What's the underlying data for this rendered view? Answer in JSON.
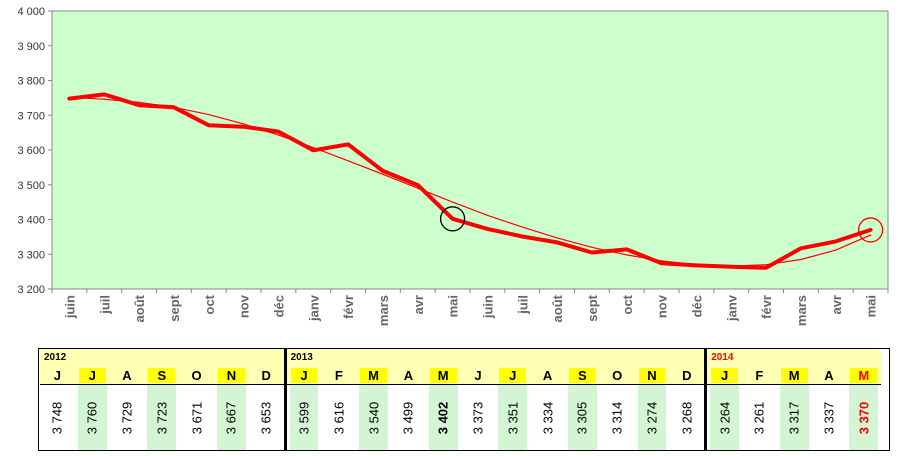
{
  "chart_data": {
    "type": "line",
    "categories": [
      "juin",
      "juil",
      "août",
      "sept",
      "oct",
      "nov",
      "déc",
      "janv",
      "févr",
      "mars",
      "avr",
      "mai",
      "juin",
      "juil",
      "août",
      "sept",
      "oct",
      "nov",
      "déc",
      "janv",
      "févr",
      "mars",
      "avr",
      "mai"
    ],
    "series": [
      {
        "values": [
          3748,
          3760,
          3729,
          3723,
          3671,
          3667,
          3653,
          3599,
          3616,
          3540,
          3499,
          3402,
          3373,
          3351,
          3334,
          3305,
          3314,
          3274,
          3268,
          3264,
          3261,
          3317,
          3337,
          3370
        ],
        "color": "#ff0000"
      },
      {
        "values": [
          3752,
          3746,
          3737,
          3723,
          3702,
          3675,
          3643,
          3607,
          3569,
          3530,
          3490,
          3450,
          3412,
          3378,
          3347,
          3320,
          3298,
          3281,
          3270,
          3266,
          3270,
          3285,
          3312,
          3355
        ],
        "color": "#ff0000"
      }
    ],
    "ylim": [
      3200,
      4000
    ],
    "yticks": [
      "3 200",
      "3 300",
      "3 400",
      "3 500",
      "3 600",
      "3 700",
      "3 800",
      "3 900",
      "4 000"
    ],
    "ytick_values": [
      3200,
      3300,
      3400,
      3500,
      3600,
      3700,
      3800,
      3900,
      4000
    ],
    "grid": false,
    "plot_background": "#ccffcc",
    "markers": [
      {
        "index": 11,
        "color": "#000000"
      },
      {
        "index": 23,
        "color": "#ff0000"
      }
    ]
  },
  "table": {
    "years": [
      {
        "label": "2012",
        "highlight": false,
        "months": [
          {
            "m": "J",
            "v": "3 748"
          },
          {
            "m": "J",
            "v": "3 760"
          },
          {
            "m": "A",
            "v": "3 729"
          },
          {
            "m": "S",
            "v": "3 723"
          },
          {
            "m": "O",
            "v": "3 671"
          },
          {
            "m": "N",
            "v": "3 667"
          },
          {
            "m": "D",
            "v": "3 653"
          }
        ]
      },
      {
        "label": "2013",
        "highlight": false,
        "months": [
          {
            "m": "J",
            "v": "3 599"
          },
          {
            "m": "F",
            "v": "3 616"
          },
          {
            "m": "M",
            "v": "3 540"
          },
          {
            "m": "A",
            "v": "3 499"
          },
          {
            "m": "M",
            "v": "3 402",
            "bold": true
          },
          {
            "m": "J",
            "v": "3 373"
          },
          {
            "m": "J",
            "v": "3 351"
          },
          {
            "m": "A",
            "v": "3 334"
          },
          {
            "m": "S",
            "v": "3 305"
          },
          {
            "m": "O",
            "v": "3 314"
          },
          {
            "m": "N",
            "v": "3 274"
          },
          {
            "m": "D",
            "v": "3 268"
          }
        ]
      },
      {
        "label": "2014",
        "highlight": true,
        "months": [
          {
            "m": "J",
            "v": "3 264"
          },
          {
            "m": "F",
            "v": "3 261"
          },
          {
            "m": "M",
            "v": "3 317"
          },
          {
            "m": "A",
            "v": "3 337"
          },
          {
            "m": "M",
            "v": "3 370",
            "red": true
          }
        ]
      }
    ],
    "colors": {
      "header_band": "#ffffb4",
      "month_highlight": "#ffff00",
      "value_highlight": "#d4f5d4",
      "accent": "#ff0000"
    }
  }
}
